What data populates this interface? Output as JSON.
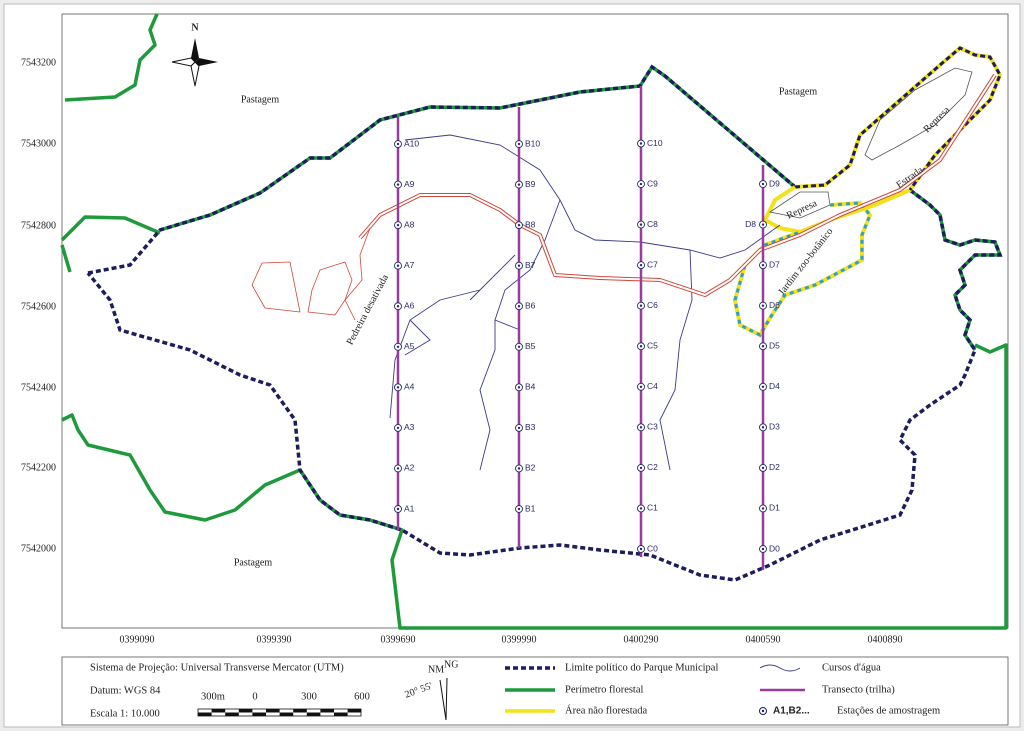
{
  "map": {
    "north": "N",
    "y_coords": [
      "7543200",
      "7543000",
      "7542800",
      "7542600",
      "7542400",
      "7542200",
      "7542000"
    ],
    "x_coords": [
      "0399090",
      "0399390",
      "0399690",
      "0399990",
      "0400290",
      "0400590",
      "0400890"
    ],
    "place_labels": [
      "Pastagem",
      "Pastagem",
      "Pastagem",
      "Represa",
      "Represa",
      "Estrada",
      "Jardim zoo-botânico",
      "Pedreira desativada"
    ],
    "stations": {
      "A": [
        "A1",
        "A2",
        "A3",
        "A4",
        "A5",
        "A6",
        "A7",
        "A8",
        "A9",
        "A10"
      ],
      "B": [
        "B1",
        "B2",
        "B3",
        "B4",
        "B5",
        "B6",
        "B7",
        "B8",
        "B9",
        "B10"
      ],
      "C": [
        "C0",
        "C1",
        "C2",
        "C3",
        "C4",
        "C5",
        "C6",
        "C7",
        "C8",
        "C9",
        "C10"
      ],
      "D": [
        "D0",
        "D1",
        "D2",
        "D3",
        "D4",
        "D5",
        "D6",
        "D7",
        "D8",
        "D9"
      ]
    }
  },
  "legend": {
    "projection": "Sistema de Projeção: Universal Transverse Mercator (UTM)",
    "datum": "Datum: WGS 84",
    "scale": "Escala  1: 10.000",
    "scale_bar": [
      "300m",
      "0",
      "300",
      "600"
    ],
    "north_arrows": [
      "NM",
      "NG"
    ],
    "declination": "20° 55'",
    "items": [
      "Limite político do Parque Municipal",
      "Perímetro florestal",
      "Área não florestada",
      "Cursos d'água",
      "Transecto (trilha)"
    ],
    "station_symbol": "A1,B2...",
    "station_label": "Estações de amostragem"
  }
}
